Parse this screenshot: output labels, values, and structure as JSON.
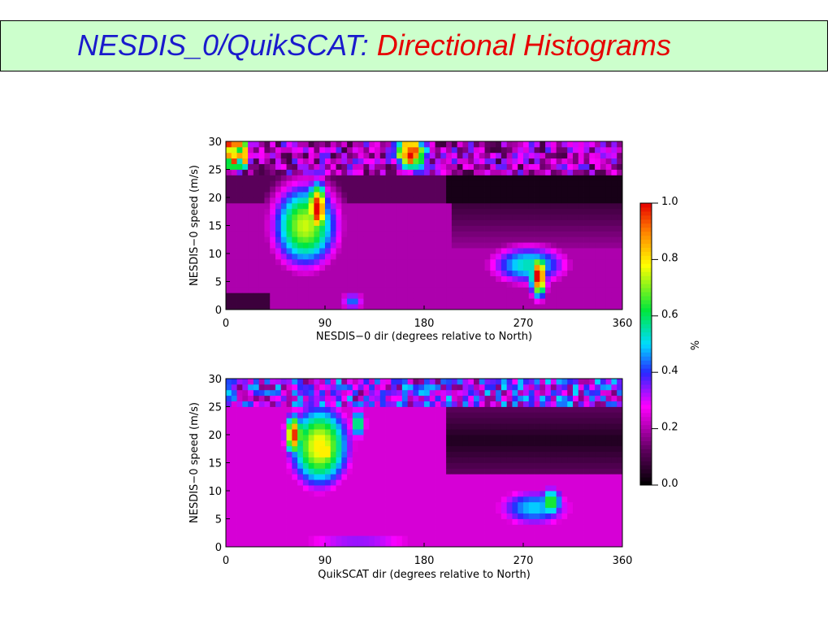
{
  "slide": {
    "title_part1": "NESDIS_0/QuikSCAT:",
    "title_part2": "Directional Histograms"
  },
  "colors": {
    "title_bg": "#ccffcc",
    "title_part1": "#1a1acc",
    "title_part2": "#e60000"
  },
  "chart_data": [
    {
      "type": "heatmap",
      "xlabel": "NESDIS−0 dir (degrees relative to North)",
      "ylabel": "NESDIS−0 speed (m/s)",
      "xlim": [
        0,
        360
      ],
      "ylim": [
        0,
        30
      ],
      "x_ticks": [
        "0",
        "90",
        "180",
        "270",
        "360"
      ],
      "y_ticks": [
        "0",
        "5",
        "10",
        "15",
        "20",
        "25",
        "30"
      ],
      "z_units": "%",
      "features": [
        {
          "label": "peak near 90 deg, high speeds",
          "x": 82,
          "y": 18,
          "value": 1.0
        },
        {
          "label": "peak near 180 deg, top speeds",
          "x": 168,
          "y": 28,
          "value": 1.0
        },
        {
          "label": "peak near 280 deg, low speeds",
          "x": 282,
          "y": 5,
          "value": 1.0
        },
        {
          "label": "low-density band 200-360 deg",
          "x": 300,
          "y": 22,
          "value": 0.05
        }
      ]
    },
    {
      "type": "heatmap",
      "xlabel": "QuikSCAT dir (degrees relative to North)",
      "ylabel": "NESDIS−0 speed (m/s)",
      "xlim": [
        0,
        360
      ],
      "ylim": [
        0,
        30
      ],
      "x_ticks": [
        "0",
        "90",
        "180",
        "270",
        "360"
      ],
      "y_ticks": [
        "0",
        "5",
        "10",
        "15",
        "20",
        "25",
        "30"
      ],
      "z_units": "%",
      "features": [
        {
          "label": "peak near 60-90 deg, high speeds",
          "x": 68,
          "y": 19,
          "value": 0.95
        },
        {
          "label": "secondary region near 270-300 deg",
          "x": 290,
          "y": 8,
          "value": 0.6
        },
        {
          "label": "low-density band 200-360 deg",
          "x": 300,
          "y": 20,
          "value": 0.05
        }
      ]
    }
  ],
  "colorbar": {
    "label": "%",
    "ticks": [
      "0.0",
      "0.2",
      "0.4",
      "0.6",
      "0.8",
      "1.0"
    ],
    "range": [
      0,
      1
    ]
  }
}
